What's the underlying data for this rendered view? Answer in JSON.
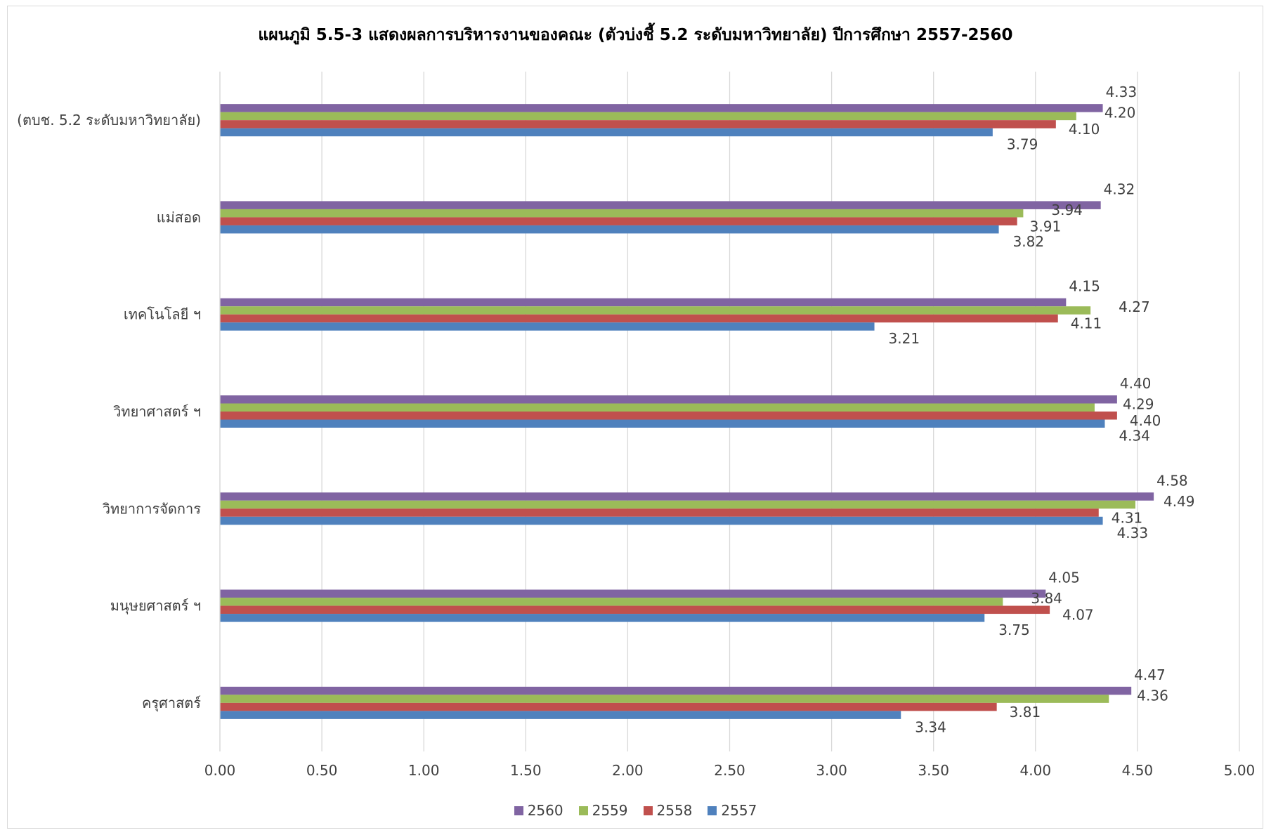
{
  "chart_data": {
    "type": "bar",
    "orientation": "horizontal",
    "title": "แผนภูมิ 5.5-3 แสดงผลการบริหารงานของคณะ (ตัวบ่งชี้ 5.2 ระดับมหาวิทยาลัย) ปีการศึกษา 2557-2560",
    "categories": [
      "(ตบช. 5.2 ระดับมหาวิทยาลัย)",
      "แม่สอด",
      "เทคโนโลยี ฯ",
      "วิทยาศาสตร์ ฯ",
      "วิทยาการจัดการ",
      "มนุษยศาสตร์ ฯ",
      "ครุศาสตร์"
    ],
    "series": [
      {
        "name": "2560",
        "color": "#8064a2",
        "values": [
          4.33,
          4.32,
          4.15,
          4.4,
          4.58,
          4.05,
          4.47
        ],
        "labels": [
          "4.33",
          "4.32",
          "4.15",
          "4.40",
          "4.58",
          "4.05",
          "4.47"
        ]
      },
      {
        "name": "2559",
        "color": "#9bbb59",
        "values": [
          4.2,
          3.94,
          4.27,
          4.29,
          4.49,
          3.84,
          4.36
        ],
        "labels": [
          "4.20",
          "3.94",
          "4.27",
          "4.29",
          "4.49",
          "3.84",
          "4.36"
        ]
      },
      {
        "name": "2558",
        "color": "#c0504d",
        "values": [
          4.1,
          3.91,
          4.11,
          4.4,
          4.31,
          4.07,
          3.81
        ],
        "labels": [
          "4.10",
          "3.91",
          "4.11",
          "4.40",
          "4.31",
          "4.07",
          "3.81"
        ]
      },
      {
        "name": "2557",
        "color": "#4f81bd",
        "values": [
          3.79,
          3.82,
          3.21,
          4.34,
          4.33,
          3.75,
          3.34
        ],
        "labels": [
          "3.79",
          "3.82",
          "3.21",
          "4.34",
          "4.33",
          "3.75",
          "3.34"
        ]
      }
    ],
    "xlim": [
      0,
      5
    ],
    "xticks": [
      "0.00",
      "0.50",
      "1.00",
      "1.50",
      "2.00",
      "2.50",
      "3.00",
      "3.50",
      "4.00",
      "4.50",
      "5.00"
    ],
    "grid": true,
    "legend_position": "bottom",
    "legend_order": [
      "2560",
      "2559",
      "2558",
      "2557"
    ]
  }
}
